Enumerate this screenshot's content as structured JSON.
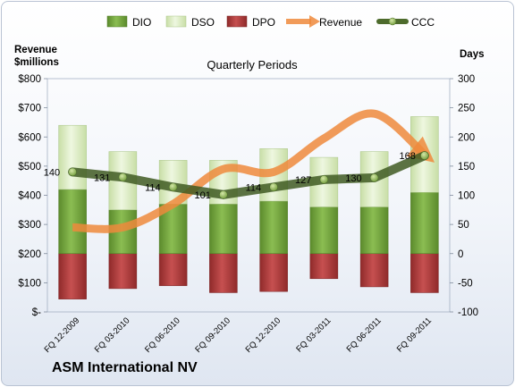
{
  "chart_data": {
    "type": "bar",
    "title": "Quarterly Periods",
    "company": "ASM International NV",
    "y_left_label": "Revenue $millions",
    "y_right_label": "Days",
    "categories": [
      "FQ 12-2009",
      "FQ 03-2010",
      "FQ 06-2010",
      "FQ 09-2010",
      "FQ 12-2010",
      "FQ 03-2011",
      "FQ 06-2011",
      "FQ 09-2011"
    ],
    "y_left_ticks": [
      "$-",
      "$100",
      "$200",
      "$300",
      "$400",
      "$500",
      "$600",
      "$700",
      "$800"
    ],
    "y_left_range": [
      0,
      800
    ],
    "y_right_ticks": [
      "-100",
      "-50",
      "0",
      "50",
      "100",
      "150",
      "200",
      "250",
      "300"
    ],
    "y_right_range": [
      -100,
      300
    ],
    "legend_position": "top",
    "legend": [
      "DIO",
      "DSO",
      "DPO",
      "Revenue",
      "CCC"
    ],
    "series": [
      {
        "name": "DIO",
        "kind": "stacked-bar",
        "axis": "right",
        "color": "#70a13c",
        "values": [
          110,
          75,
          85,
          85,
          90,
          80,
          80,
          105
        ]
      },
      {
        "name": "DSO",
        "kind": "stacked-bar",
        "axis": "right",
        "color": "#dbecc0",
        "values": [
          110,
          100,
          75,
          75,
          90,
          85,
          95,
          130
        ]
      },
      {
        "name": "DPO",
        "kind": "negative-bar",
        "axis": "right",
        "color": "#b03a3a",
        "values": [
          -78,
          -60,
          -55,
          -67,
          -65,
          -43,
          -57,
          -67
        ]
      },
      {
        "name": "Revenue",
        "kind": "line",
        "axis": "left",
        "color": "#ee8a3c",
        "values": [
          290,
          290,
          370,
          490,
          480,
          595,
          680,
          540
        ]
      },
      {
        "name": "CCC",
        "kind": "line",
        "axis": "right",
        "color": "#4d6b2c",
        "values": [
          140,
          131,
          114,
          101,
          114,
          127,
          130,
          168
        ],
        "labels": [
          "140",
          "131",
          "114",
          "101",
          "114",
          "127",
          "130",
          "168"
        ]
      }
    ]
  }
}
